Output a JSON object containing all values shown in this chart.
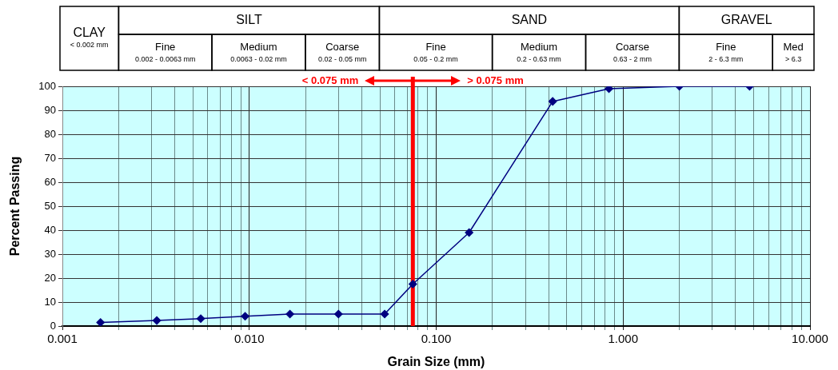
{
  "chart_data": {
    "type": "line",
    "xlabel": "Grain Size (mm)",
    "ylabel": "Percent Passing",
    "x": [
      0.0016,
      0.0032,
      0.0055,
      0.0095,
      0.0165,
      0.03,
      0.053,
      0.075,
      0.15,
      0.42,
      0.84,
      2,
      4.75
    ],
    "series": [
      {
        "color": "#000080",
        "values": [
          1.5,
          2.3,
          3.1,
          4.1,
          5,
          5,
          5,
          17.5,
          39,
          93.7,
          99,
          100,
          100
        ]
      }
    ],
    "log": "x",
    "marker": "diamond",
    "grid": true,
    "legend": false,
    "xlim": [
      0.001,
      10
    ],
    "ylim": [
      0,
      100
    ],
    "yticks": [
      0,
      10,
      20,
      30,
      40,
      50,
      60,
      70,
      80,
      90,
      100
    ],
    "xticks": [
      {
        "value": 0.001,
        "label": "0.001"
      },
      {
        "value": 0.002,
        "label": null
      },
      {
        "value": 0.003,
        "label": null
      },
      {
        "value": 0.004,
        "label": null
      },
      {
        "value": 0.005,
        "label": null
      },
      {
        "value": 0.006,
        "label": null
      },
      {
        "value": 0.007,
        "label": null
      },
      {
        "value": 0.008,
        "label": null
      },
      {
        "value": 0.009,
        "label": null
      },
      {
        "value": 0.01,
        "label": "0.010"
      },
      {
        "value": 0.02,
        "label": null
      },
      {
        "value": 0.03,
        "label": null
      },
      {
        "value": 0.04,
        "label": null
      },
      {
        "value": 0.05,
        "label": null
      },
      {
        "value": 0.06,
        "label": null
      },
      {
        "value": 0.07,
        "label": null
      },
      {
        "value": 0.08,
        "label": null
      },
      {
        "value": 0.09,
        "label": null
      },
      {
        "value": 0.1,
        "label": "0.100"
      },
      {
        "value": 0.2,
        "label": null
      },
      {
        "value": 0.3,
        "label": null
      },
      {
        "value": 0.4,
        "label": null
      },
      {
        "value": 0.5,
        "label": null
      },
      {
        "value": 0.6,
        "label": null
      },
      {
        "value": 0.7,
        "label": null
      },
      {
        "value": 0.8,
        "label": null
      },
      {
        "value": 0.9,
        "label": null
      },
      {
        "value": 1,
        "label": "1.000"
      },
      {
        "value": 2,
        "label": null
      },
      {
        "value": 3,
        "label": null
      },
      {
        "value": 4,
        "label": null
      },
      {
        "value": 5,
        "label": null
      },
      {
        "value": 6,
        "label": null
      },
      {
        "value": 7,
        "label": null
      },
      {
        "value": 8,
        "label": null
      },
      {
        "value": 9,
        "label": null
      },
      {
        "value": 10,
        "label": "10.000"
      }
    ],
    "ref_lines": [
      {
        "axis": "x",
        "value": 0.075,
        "color": "#ff0000"
      }
    ],
    "annotations": [
      "< 0.075 mm",
      "> 0.075 mm",
      "CLAY\n< 0.002 mm",
      "SILT",
      "SAND",
      "GRAVEL",
      "Fine\n0.002 - 0.0063 mm",
      "Medium\n0.0063 - 0.02 mm",
      "Coarse\n0.02 - 0.05 mm",
      "Fine\n0.05 - 0.2 mm",
      "Medium\n0.2 - 0.63 mm",
      "Coarse\n0.63 - 2 mm",
      "Fine\n2 - 6.3 mm",
      "Med\n> 6.3"
    ]
  }
}
